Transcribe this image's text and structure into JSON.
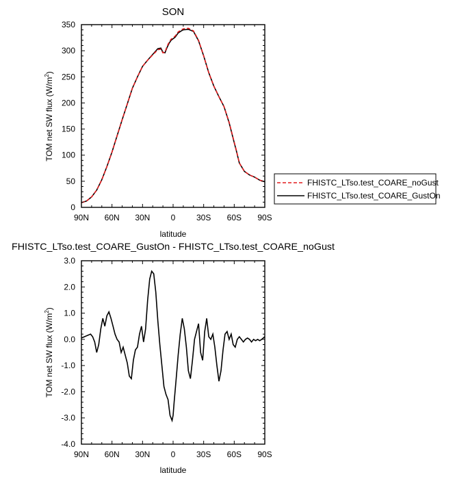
{
  "chart_data": [
    {
      "type": "line",
      "title": "SON",
      "xlabel": "latitude",
      "ylabel_main": "TOM net SW flux (W/m",
      "ylabel_sup": "2",
      "ylabel_end": ")",
      "x_ticks": [
        90,
        60,
        30,
        0,
        -30,
        -60,
        -90
      ],
      "x_tick_labels": [
        "90N",
        "60N",
        "30N",
        "0",
        "30S",
        "60S",
        "90S"
      ],
      "xlim": [
        90,
        -90
      ],
      "ylim": [
        0,
        350
      ],
      "y_ticks": [
        0,
        50,
        100,
        150,
        200,
        250,
        300,
        350
      ],
      "y_tick_labels": [
        "0",
        "50",
        "100",
        "150",
        "200",
        "250",
        "300",
        "350"
      ],
      "legend_position": "right",
      "series": [
        {
          "name": "FHISTC_LTso.test_COARE_noGust",
          "color": "#e31a1c",
          "dash": "dashed",
          "x": [
            90,
            85,
            80,
            75,
            70,
            65,
            60,
            55,
            50,
            45,
            40,
            35,
            30,
            25,
            20,
            15,
            12,
            10,
            8,
            6,
            4,
            2,
            0,
            -2,
            -5,
            -8,
            -10,
            -15,
            -20,
            -25,
            -30,
            -35,
            -40,
            -45,
            -50,
            -55,
            -60,
            -62,
            -65,
            -70,
            -75,
            -80,
            -85,
            -90
          ],
          "y": [
            9,
            12,
            20,
            33,
            53,
            78,
            106,
            137,
            168,
            198,
            228,
            250,
            270,
            282,
            292,
            302,
            303,
            296,
            297,
            308,
            316,
            322,
            325,
            328,
            336,
            340,
            342,
            343,
            338,
            320,
            290,
            258,
            232,
            212,
            193,
            163,
            125,
            110,
            85,
            69,
            62,
            58,
            52,
            49
          ]
        },
        {
          "name": "FHISTC_LTso.test_COARE_GustOn",
          "color": "#000000",
          "dash": "solid",
          "x": [
            90,
            85,
            80,
            75,
            70,
            65,
            60,
            55,
            50,
            45,
            40,
            35,
            30,
            25,
            20,
            15,
            12,
            10,
            8,
            6,
            4,
            2,
            0,
            -2,
            -5,
            -8,
            -10,
            -15,
            -20,
            -25,
            -30,
            -35,
            -40,
            -45,
            -50,
            -55,
            -60,
            -62,
            -65,
            -70,
            -75,
            -80,
            -85,
            -90
          ],
          "y": [
            9,
            12,
            20,
            33,
            53,
            78,
            106,
            137,
            168,
            198,
            228,
            250,
            270,
            282,
            293,
            304,
            305,
            297,
            296,
            306,
            314,
            320,
            323,
            326,
            334,
            338,
            340,
            341,
            337,
            319,
            290,
            258,
            232,
            212,
            193,
            162,
            124,
            109,
            85,
            69,
            62,
            58,
            52,
            49
          ]
        }
      ]
    },
    {
      "type": "line",
      "title": "FHISTC_LTso.test_COARE_GustOn - FHISTC_LTso.test_COARE_noGust",
      "xlabel": "latitude",
      "ylabel_main": "TOM net SW flux (W/m",
      "ylabel_sup": "2",
      "ylabel_end": ")",
      "x_ticks": [
        90,
        60,
        30,
        0,
        -30,
        -60,
        -90
      ],
      "x_tick_labels": [
        "90N",
        "60N",
        "30N",
        "0",
        "30S",
        "60S",
        "90S"
      ],
      "xlim": [
        90,
        -90
      ],
      "ylim": [
        -4,
        3
      ],
      "y_ticks": [
        -4,
        -3,
        -2,
        -1,
        0,
        1,
        2,
        3
      ],
      "y_tick_labels": [
        "-4.0",
        "-3.0",
        "-2.0",
        "-1.0",
        "0.0",
        "1.0",
        "2.0",
        "3.0"
      ],
      "series": [
        {
          "color": "#000000",
          "x": [
            90,
            87,
            84,
            81,
            79,
            77,
            75,
            73,
            71,
            69,
            67,
            65,
            63,
            61,
            59,
            57,
            55,
            53,
            51,
            49,
            47,
            45,
            43,
            41,
            39,
            37,
            35,
            33,
            31,
            29,
            27,
            25,
            23,
            21,
            19,
            17,
            15,
            13,
            11,
            9,
            7,
            5,
            3,
            1,
            0,
            -1,
            -3,
            -5,
            -7,
            -9,
            -11,
            -13,
            -15,
            -17,
            -19,
            -21,
            -23,
            -25,
            -27,
            -29,
            -31,
            -33,
            -35,
            -37,
            -39,
            -41,
            -43,
            -45,
            -47,
            -49,
            -51,
            -53,
            -55,
            -57,
            -59,
            -61,
            -63,
            -65,
            -67,
            -69,
            -71,
            -73,
            -75,
            -77,
            -79,
            -81,
            -83,
            -85,
            -87,
            -90
          ],
          "y": [
            0.05,
            0.1,
            0.15,
            0.2,
            0.1,
            -0.1,
            -0.5,
            -0.2,
            0.4,
            0.8,
            0.5,
            0.9,
            1.05,
            0.8,
            0.5,
            0.2,
            0.0,
            -0.1,
            -0.5,
            -0.3,
            -0.6,
            -0.9,
            -1.4,
            -1.5,
            -0.8,
            -0.4,
            -0.3,
            0.2,
            0.5,
            -0.1,
            0.4,
            1.5,
            2.3,
            2.6,
            2.5,
            1.8,
            0.7,
            -0.2,
            -1.0,
            -1.8,
            -2.1,
            -2.3,
            -2.9,
            -3.1,
            -2.9,
            -2.4,
            -1.5,
            -0.6,
            0.2,
            0.8,
            0.4,
            -0.3,
            -1.2,
            -1.5,
            -0.8,
            0.0,
            0.3,
            0.6,
            -0.5,
            -0.8,
            0.3,
            0.8,
            0.1,
            0.0,
            0.2,
            -0.3,
            -1.0,
            -1.6,
            -1.2,
            -0.4,
            0.2,
            0.3,
            0.0,
            0.2,
            -0.2,
            -0.3,
            0.0,
            0.1,
            0.0,
            -0.1,
            0.0,
            0.05,
            0.0,
            -0.1,
            0.0,
            -0.05,
            0.0,
            -0.05,
            0.0,
            0.1
          ]
        }
      ]
    }
  ]
}
